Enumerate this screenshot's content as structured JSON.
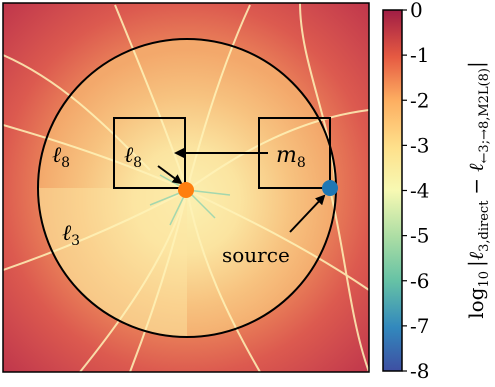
{
  "regions": {
    "l8_outer": {
      "base": "ℓ",
      "sub": "8"
    },
    "l8_box": {
      "base": "ℓ",
      "sub": "8"
    },
    "m8": {
      "base": "m",
      "sub": "8"
    },
    "l3": {
      "base": "ℓ",
      "sub": "3"
    }
  },
  "labels": {
    "source": "source"
  },
  "colorbar": {
    "ticks": [
      "0",
      "-1",
      "-2",
      "-3",
      "-4",
      "-5",
      "-6",
      "-7",
      "-8"
    ],
    "label": "log10 |ℓ3,direct − ℓ←3;→8,M2L(8)|",
    "label_parts": {
      "prefix": "log",
      "prefix_sub": "10",
      "bar_open": "|",
      "term1": "ℓ",
      "term1_sub": "3,direct",
      "minus": "−",
      "term2": "ℓ",
      "term2_sub": "←3;→8,M2L(8)",
      "bar_close": "|"
    }
  },
  "colors": {
    "marker_orange": "#ff7f0e",
    "marker_blue": "#1f77b4"
  }
}
